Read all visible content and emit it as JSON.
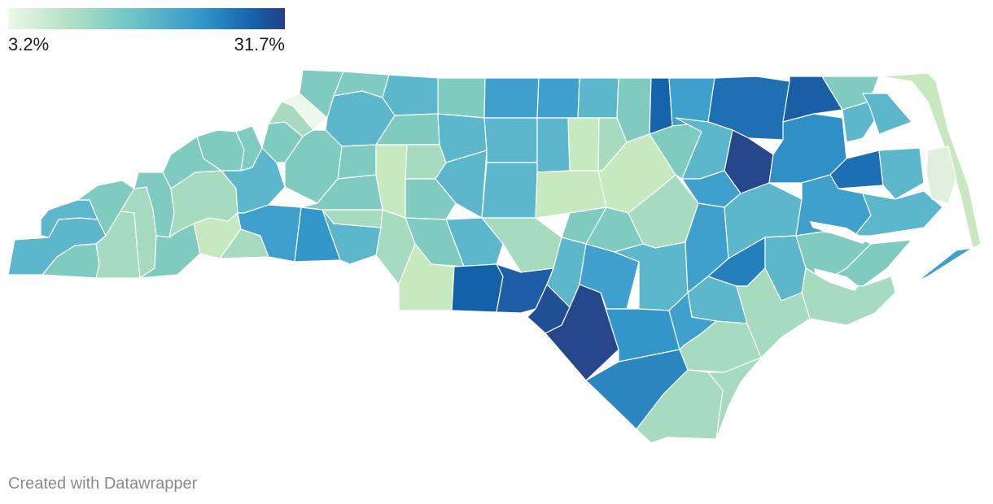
{
  "legend": {
    "min_label": "3.2%",
    "max_label": "31.7%",
    "min_value": 3.2,
    "max_value": 31.7,
    "colors": [
      "#edf8e9",
      "#c7e9c0",
      "#a6dbbf",
      "#7fcbc0",
      "#5cb6cc",
      "#3f9fcd",
      "#2480bd",
      "#1361a8",
      "#1d4f9a",
      "#27478c"
    ]
  },
  "footer": {
    "credit": "Created with Datawrapper"
  },
  "map_colors": {
    "sea": "#ffffff",
    "border": "#ffffff",
    "water": "#ffffff"
  }
}
